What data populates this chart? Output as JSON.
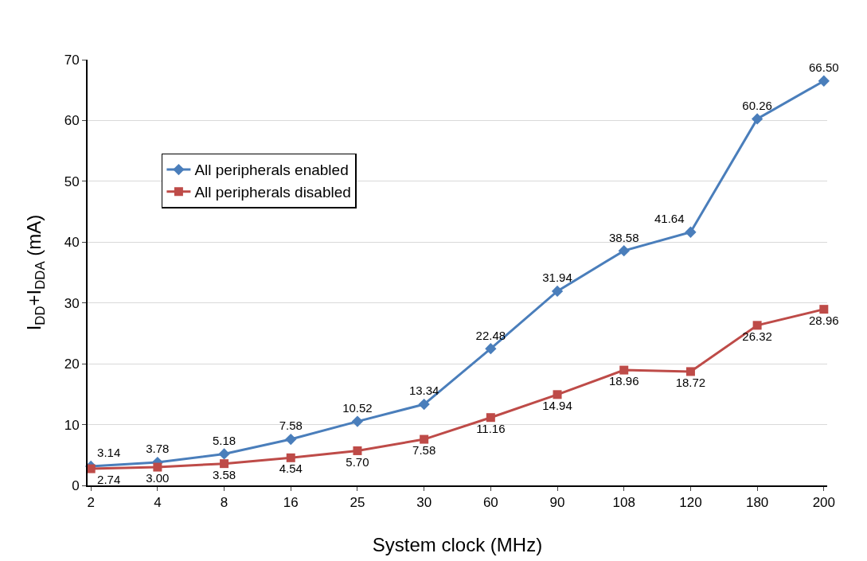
{
  "chart_data": {
    "type": "line",
    "xlabel": "System clock (MHz)",
    "ylabel": "I$_{DD}$+I$_{DDA}$ (mA)",
    "categories": [
      "2",
      "4",
      "8",
      "16",
      "25",
      "30",
      "60",
      "90",
      "108",
      "120",
      "180",
      "200"
    ],
    "series": [
      {
        "name": "All peripherals enabled",
        "color": "#4a7ebb",
        "marker": "diamond",
        "values": [
          3.14,
          3.78,
          5.18,
          7.58,
          10.52,
          13.34,
          22.48,
          31.94,
          38.58,
          41.64,
          60.26,
          66.5
        ],
        "value_labels": [
          "3.14",
          "3.78",
          "5.18",
          "7.58",
          "10.52",
          "13.34",
          "22.48",
          "31.94",
          "38.58",
          "41.64",
          "60.26",
          "66.50"
        ]
      },
      {
        "name": "All peripherals disabled",
        "color": "#be4b48",
        "marker": "square",
        "values": [
          2.74,
          3.0,
          3.58,
          4.54,
          5.7,
          7.58,
          11.16,
          14.94,
          18.96,
          18.72,
          26.32,
          28.96
        ],
        "value_labels": [
          "2.74",
          "3.00",
          "3.58",
          "4.54",
          "5.70",
          "7.58",
          "11.16",
          "14.94",
          "18.96",
          "18.72",
          "26.32",
          "28.96"
        ]
      }
    ],
    "ylim": [
      0,
      70
    ],
    "yticks": [
      0,
      10,
      20,
      30,
      40,
      50,
      60,
      70
    ],
    "grid": "y",
    "legend": "top left",
    "line_style": "solid"
  }
}
